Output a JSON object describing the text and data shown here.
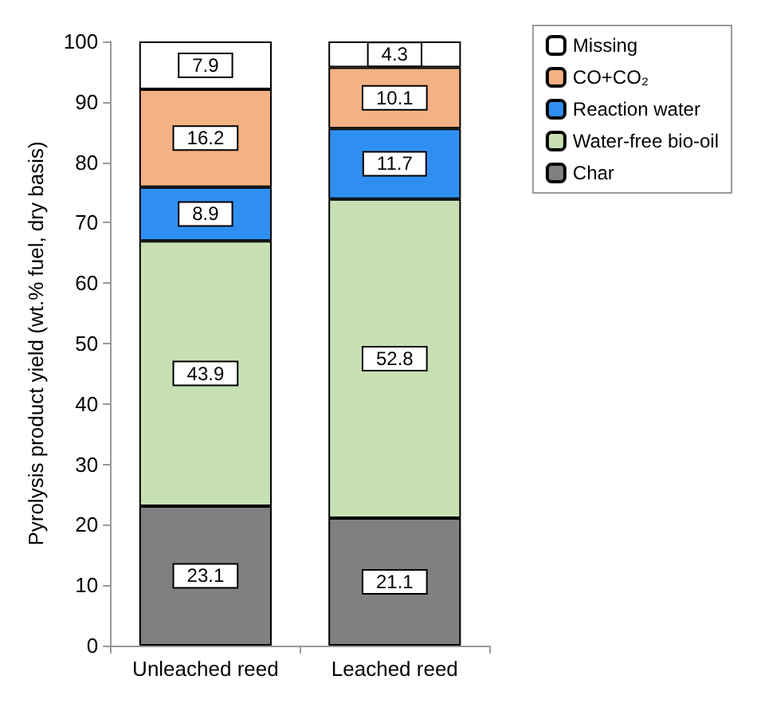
{
  "chart_data": {
    "type": "bar",
    "stacked": true,
    "ylabel": "Pyrolysis product yield (wt.% fuel, dry basis)",
    "categories": [
      "Unleached reed",
      "Leached reed"
    ],
    "series": [
      {
        "name": "Char",
        "color": "#808080",
        "values": [
          23.1,
          21.1
        ]
      },
      {
        "name": "Water-free bio-oil",
        "color": "#c6e0b4",
        "values": [
          43.9,
          52.8
        ]
      },
      {
        "name": "Reaction water",
        "color": "#2f8ff0",
        "values": [
          8.9,
          11.7
        ]
      },
      {
        "name": "CO+CO₂",
        "color": "#f4b183",
        "values": [
          16.2,
          10.1
        ]
      },
      {
        "name": "Missing",
        "color": "#ffffff",
        "values": [
          7.9,
          4.3
        ]
      }
    ],
    "ylim": [
      0,
      100
    ],
    "yticks": [
      0,
      10,
      20,
      30,
      40,
      50,
      60,
      70,
      80,
      90,
      100
    ],
    "grid": false,
    "legend": "top right",
    "data_labels": true
  }
}
